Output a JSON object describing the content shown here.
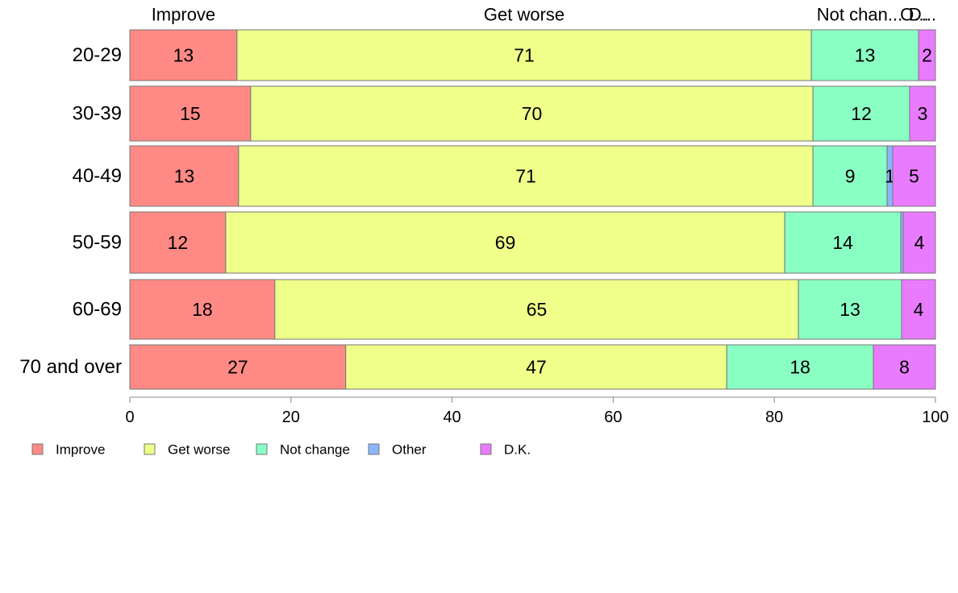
{
  "chart_data": {
    "type": "bar",
    "orientation": "horizontal",
    "stacked": true,
    "categories": [
      "20-29",
      "30-39",
      "40-49",
      "50-59",
      "60-69",
      "70 and over"
    ],
    "series": [
      {
        "name": "Improve",
        "color": "#FF8A85",
        "values": [
          13.3,
          15.0,
          13.5,
          11.9,
          18.0,
          26.8
        ],
        "labels": [
          "13",
          "15",
          "13",
          "12",
          "18",
          "27"
        ]
      },
      {
        "name": "Get worse",
        "color": "#EEFF8A",
        "values": [
          71.3,
          69.8,
          71.3,
          69.4,
          65.0,
          47.3
        ],
        "labels": [
          "71",
          "70",
          "71",
          "69",
          "65",
          "47"
        ]
      },
      {
        "name": "Not change",
        "color": "#8AFFC4",
        "values": [
          13.3,
          12.0,
          9.2,
          14.4,
          12.8,
          18.2
        ],
        "labels": [
          "13",
          "12",
          "9",
          "14",
          "13",
          "18"
        ]
      },
      {
        "name": "Other",
        "color": "#8AB6FF",
        "values": [
          0.0,
          0.0,
          0.7,
          0.3,
          0.0,
          0.0
        ],
        "labels": [
          "",
          "",
          "1",
          "",
          "",
          ""
        ]
      },
      {
        "name": "D.K.",
        "color": "#E97BFF",
        "values": [
          2.1,
          3.2,
          5.3,
          4.0,
          4.2,
          7.7
        ],
        "labels": [
          "2",
          "3",
          "5",
          "4",
          "4",
          "8"
        ]
      }
    ],
    "top_labels": [
      "Improve",
      "Get worse",
      "Not chan...",
      "O...",
      "D..."
    ],
    "xlim": [
      0,
      100
    ],
    "x_ticks": [
      "0",
      "20",
      "40",
      "60",
      "80",
      "100"
    ],
    "legend_position": "bottom-left",
    "title": "",
    "xlabel": "",
    "ylabel": ""
  }
}
